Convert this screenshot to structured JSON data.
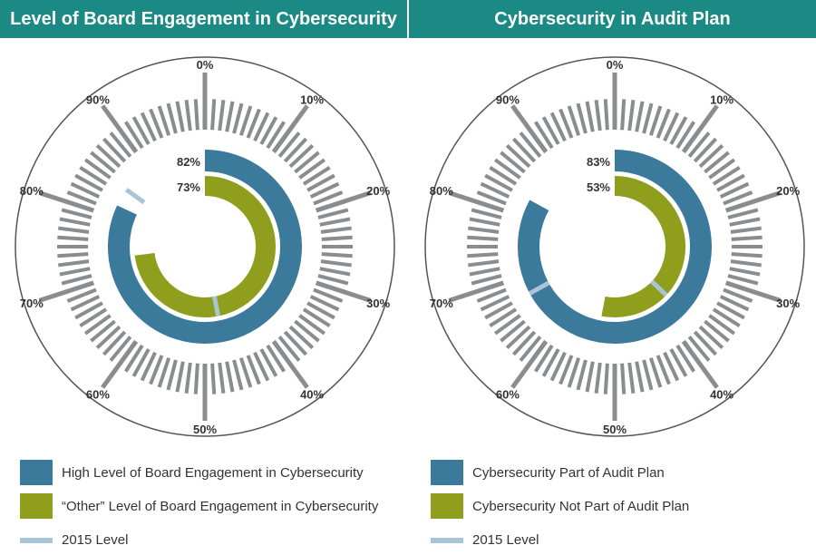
{
  "panels": [
    {
      "title": "Level of Board Engagement in Cybersecurity",
      "legend": [
        {
          "label": "High Level of Board Engagement in Cybersecurity",
          "color": "#3b7a9a",
          "kind": "swatch"
        },
        {
          "label": "“Other” Level of Board Engagement in Cybersecurity",
          "color": "#8f9e1c",
          "kind": "swatch"
        },
        {
          "label": "2015 Level",
          "color": "#a9c4d6",
          "kind": "line"
        }
      ]
    },
    {
      "title": "Cybersecurity in Audit Plan",
      "legend": [
        {
          "label": "Cybersecurity Part of Audit Plan",
          "color": "#3b7a9a",
          "kind": "swatch"
        },
        {
          "label": "Cybersecurity Not Part of Audit Plan",
          "color": "#8f9e1c",
          "kind": "swatch"
        },
        {
          "label": "2015 Level",
          "color": "#a9c4d6",
          "kind": "line"
        }
      ]
    }
  ],
  "chart_data": [
    {
      "type": "radial-bar",
      "title": "Level of Board Engagement in Cybersecurity",
      "scale_labels": [
        "0%",
        "10%",
        "20%",
        "30%",
        "40%",
        "50%",
        "60%",
        "70%",
        "80%",
        "90%"
      ],
      "series": [
        {
          "name": "High Level of Board Engagement in Cybersecurity",
          "value": 82,
          "label": "82%",
          "color": "#3b7a9a",
          "level_2015": 85
        },
        {
          "name": "“Other” Level of Board Engagement in Cybersecurity",
          "value": 73,
          "label": "73%",
          "color": "#8f9e1c",
          "level_2015": 47
        }
      ],
      "level_2015_color": "#a9c4d6"
    },
    {
      "type": "radial-bar",
      "title": "Cybersecurity in Audit Plan",
      "scale_labels": [
        "0%",
        "10%",
        "20%",
        "30%",
        "40%",
        "50%",
        "60%",
        "70%",
        "80%",
        "90%"
      ],
      "series": [
        {
          "name": "Cybersecurity Part of Audit Plan",
          "value": 83,
          "label": "83%",
          "color": "#3b7a9a",
          "level_2015": 67
        },
        {
          "name": "Cybersecurity Not Part of Audit Plan",
          "value": 53,
          "label": "53%",
          "color": "#8f9e1c",
          "level_2015": 37
        }
      ],
      "level_2015_color": "#a9c4d6"
    }
  ]
}
